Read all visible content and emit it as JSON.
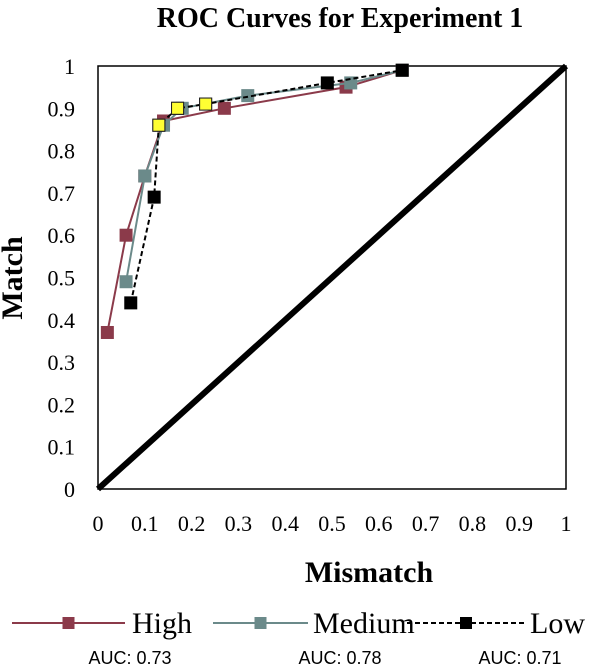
{
  "chart_data": {
    "type": "line",
    "title": "ROC Curves for Experiment 1",
    "xlabel": "Mismatch",
    "ylabel": "Match",
    "xlim": [
      0,
      1
    ],
    "ylim": [
      0,
      1
    ],
    "x_ticks": [
      "0",
      "0.1",
      "0.2",
      "0.3",
      "0.4",
      "0.5",
      "0.6",
      "0.7",
      "0.8",
      "0.9",
      "1"
    ],
    "y_ticks": [
      "0",
      "0.1",
      "0.2",
      "0.3",
      "0.4",
      "0.5",
      "0.6",
      "0.7",
      "0.8",
      "0.9",
      "1"
    ],
    "grid": false,
    "legend_position": "bottom",
    "diagonal": [
      [
        0,
        0
      ],
      [
        1,
        1
      ]
    ],
    "series": [
      {
        "name": "High",
        "auc": "AUC: 0.73",
        "color": "#8b3a4a",
        "line_style": "solid",
        "points": [
          [
            0.02,
            0.37
          ],
          [
            0.06,
            0.6
          ],
          [
            0.1,
            0.74
          ],
          [
            0.14,
            0.87
          ],
          [
            0.27,
            0.9
          ],
          [
            0.53,
            0.95
          ],
          [
            0.65,
            0.99
          ]
        ]
      },
      {
        "name": "Medium",
        "auc": "AUC: 0.78",
        "color": "#6b8a8a",
        "line_style": "solid",
        "points": [
          [
            0.06,
            0.49
          ],
          [
            0.1,
            0.74
          ],
          [
            0.14,
            0.86
          ],
          [
            0.18,
            0.9
          ],
          [
            0.32,
            0.93
          ],
          [
            0.54,
            0.96
          ],
          [
            0.65,
            0.99
          ]
        ]
      },
      {
        "name": "Low",
        "auc": "AUC: 0.71",
        "color": "#000000",
        "line_style": "dashed",
        "points": [
          [
            0.07,
            0.44
          ],
          [
            0.12,
            0.69
          ],
          [
            0.13,
            0.86
          ],
          [
            0.17,
            0.9
          ],
          [
            0.23,
            0.91
          ],
          [
            0.49,
            0.96
          ],
          [
            0.65,
            0.99
          ]
        ]
      }
    ],
    "highlighted_points": {
      "color": "#ffff33",
      "points": [
        [
          0.13,
          0.86
        ],
        [
          0.17,
          0.9
        ],
        [
          0.23,
          0.91
        ]
      ]
    }
  }
}
